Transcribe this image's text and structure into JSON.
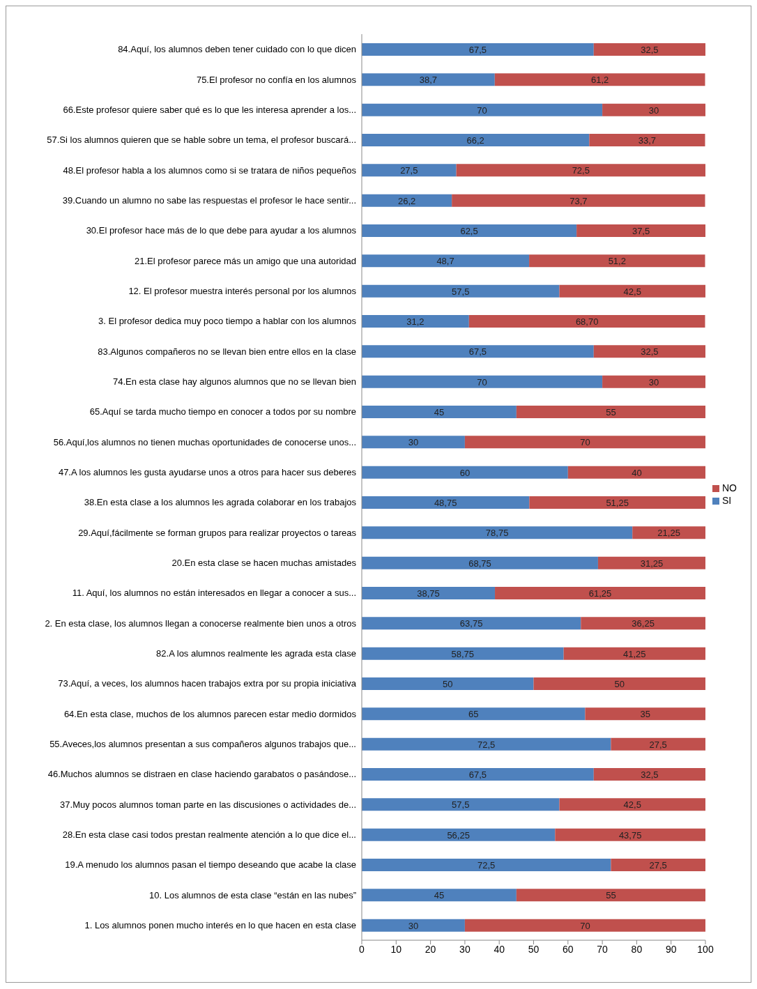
{
  "chart_data": {
    "type": "bar",
    "orientation": "horizontal",
    "stacked": true,
    "categories": [
      "84.Aquí, los alumnos deben tener cuidado con lo que dicen",
      "75.El profesor no confía en los alumnos",
      "66.Este profesor quiere saber qué es lo que les interesa aprender a los...",
      "57.Si los alumnos quieren que se hable sobre un tema, el profesor buscará...",
      "48.El profesor habla a los alumnos como si se tratara de niños pequeños",
      "39.Cuando un alumno no sabe las respuestas el profesor le hace sentir...",
      "30.El profesor hace más de lo que debe para ayudar a los alumnos",
      "21.El profesor parece más un amigo que una autoridad",
      "12. El profesor muestra interés personal por los alumnos",
      "3. El profesor dedica muy poco tiempo a hablar con los alumnos",
      "83.Algunos compañeros no se llevan bien entre ellos en la clase",
      "74.En esta clase hay algunos alumnos que no se llevan bien",
      "65.Aquí se tarda mucho tiempo en conocer a todos por su nombre",
      "56.Aquí,los alumnos no tienen muchas oportunidades de conocerse unos...",
      "47.A los alumnos les gusta ayudarse unos a otros para hacer sus deberes",
      "38.En esta clase a los alumnos les agrada colaborar en los trabajos",
      "29.Aquí,fácilmente se forman grupos para realizar proyectos o tareas",
      "20.En esta clase se hacen muchas amistades",
      "11. Aquí, los alumnos no están interesados en llegar a conocer a sus...",
      "2. En esta clase, los alumnos llegan a conocerse realmente bien unos a otros",
      "82.A los alumnos realmente les agrada esta clase",
      "73.Aquí, a veces, los alumnos hacen trabajos extra por su propia iniciativa",
      "64.En esta clase, muchos de los alumnos parecen estar medio dormidos",
      "55.Aveces,los alumnos presentan a sus compañeros algunos trabajos que...",
      "46.Muchos alumnos se distraen en clase haciendo garabatos o pasándose...",
      "37.Muy pocos alumnos toman parte en las discusiones o actividades de...",
      "28.En esta clase casi todos prestan realmente atención a lo que dice el...",
      "19.A menudo los alumnos pasan el tiempo deseando que acabe la clase",
      "10. Los alumnos de esta clase “están en las nubes”",
      "1. Los alumnos ponen mucho interés en lo que hacen en esta clase"
    ],
    "series": [
      {
        "name": "SI",
        "color": "#4f81bd",
        "values": [
          67.5,
          38.7,
          70,
          66.2,
          27.5,
          26.2,
          62.5,
          48.7,
          57.5,
          31.2,
          67.5,
          70,
          45,
          30,
          60,
          48.75,
          78.75,
          68.75,
          38.75,
          63.75,
          58.75,
          50,
          65,
          72.5,
          67.5,
          57.5,
          56.25,
          72.5,
          45,
          30
        ],
        "value_labels": [
          "67,5",
          "38,7",
          "70",
          "66,2",
          "27,5",
          "26,2",
          "62,5",
          "48,7",
          "57,5",
          "31,2",
          "67,5",
          "70",
          "45",
          "30",
          "60",
          "48,75",
          "78,75",
          "68,75",
          "38,75",
          "63,75",
          "58,75",
          "50",
          "65",
          "72,5",
          "67,5",
          "57,5",
          "56,25",
          "72,5",
          "45",
          "30"
        ]
      },
      {
        "name": "NO",
        "color": "#c0504d",
        "values": [
          32.5,
          61.2,
          30,
          33.7,
          72.5,
          73.7,
          37.5,
          51.2,
          42.5,
          68.7,
          32.5,
          30,
          55,
          70,
          40,
          51.25,
          21.25,
          31.25,
          61.25,
          36.25,
          41.25,
          50,
          35,
          27.5,
          32.5,
          42.5,
          43.75,
          27.5,
          55,
          70
        ],
        "value_labels": [
          "32,5",
          "61,2",
          "30",
          "33,7",
          "72,5",
          "73,7",
          "37,5",
          "51,2",
          "42,5",
          "68,70",
          "32,5",
          "30",
          "55",
          "70",
          "40",
          "51,25",
          "21,25",
          "31,25",
          "61,25",
          "36,25",
          "41,25",
          "50",
          "35",
          "27,5",
          "32,5",
          "42,5",
          "43,75",
          "27,5",
          "55",
          "70"
        ]
      }
    ],
    "xlim": [
      0,
      100
    ],
    "xticks": [
      0,
      10,
      20,
      30,
      40,
      50,
      60,
      70,
      80,
      90,
      100
    ],
    "legend": "right",
    "grid": false
  }
}
